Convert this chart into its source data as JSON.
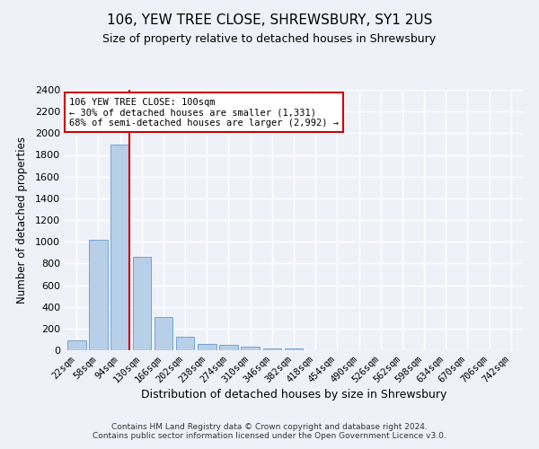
{
  "title1": "106, YEW TREE CLOSE, SHREWSBURY, SY1 2US",
  "title2": "Size of property relative to detached houses in Shrewsbury",
  "xlabel": "Distribution of detached houses by size in Shrewsbury",
  "ylabel": "Number of detached properties",
  "categories": [
    "22sqm",
    "58sqm",
    "94sqm",
    "130sqm",
    "166sqm",
    "202sqm",
    "238sqm",
    "274sqm",
    "310sqm",
    "346sqm",
    "382sqm",
    "418sqm",
    "454sqm",
    "490sqm",
    "526sqm",
    "562sqm",
    "598sqm",
    "634sqm",
    "670sqm",
    "706sqm",
    "742sqm"
  ],
  "values": [
    95,
    1015,
    1895,
    858,
    310,
    128,
    60,
    48,
    35,
    20,
    18,
    0,
    0,
    0,
    0,
    0,
    0,
    0,
    0,
    0,
    0
  ],
  "bar_color": "#b8cfe8",
  "bar_edge_color": "#6699cc",
  "vline_color": "#cc0000",
  "vline_pos": 2.42,
  "annotation_text": "106 YEW TREE CLOSE: 100sqm\n← 30% of detached houses are smaller (1,331)\n68% of semi-detached houses are larger (2,992) →",
  "annotation_box_color": "#ffffff",
  "annotation_box_edge": "#cc0000",
  "ylim": [
    0,
    2400
  ],
  "yticks": [
    0,
    200,
    400,
    600,
    800,
    1000,
    1200,
    1400,
    1600,
    1800,
    2000,
    2200,
    2400
  ],
  "footer": "Contains HM Land Registry data © Crown copyright and database right 2024.\nContains public sector information licensed under the Open Government Licence v3.0.",
  "bg_color": "#eef2f8",
  "grid_color": "#ffffff",
  "title1_fontsize": 11,
  "title2_fontsize": 9
}
